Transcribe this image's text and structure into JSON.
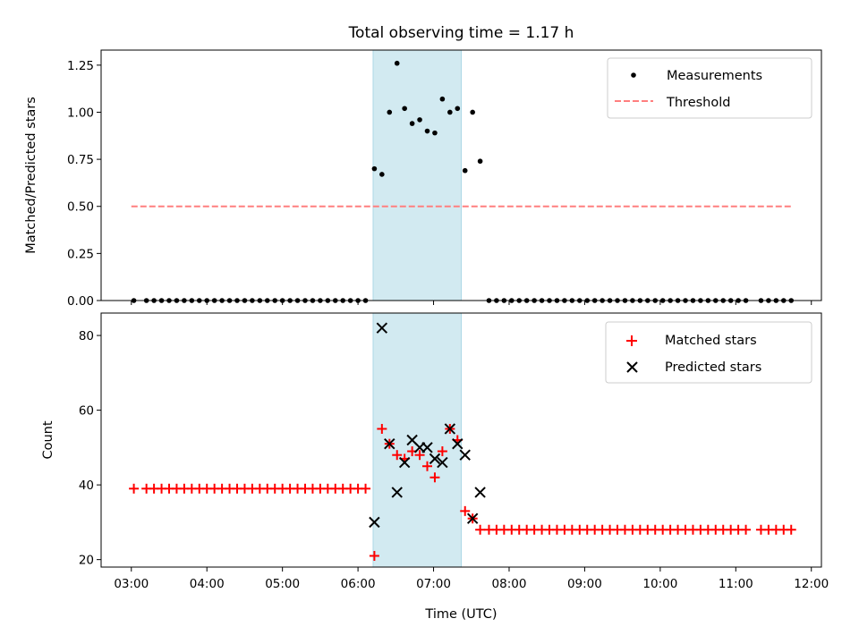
{
  "chart_data": [
    {
      "type": "scatter",
      "title": "Total observing time = 1.17 h",
      "xlabel": "",
      "ylabel": "Matched/Predicted stars",
      "xlim": [
        "02:36",
        "12:08"
      ],
      "ylim": [
        0,
        1.33
      ],
      "yticks": [
        "0.00",
        "0.25",
        "0.50",
        "0.75",
        "1.00",
        "1.25"
      ],
      "highlight_span": {
        "start": "06:12",
        "end": "07:22",
        "color": "#add8e6"
      },
      "legend": {
        "placement": "top-right",
        "entries": [
          "Measurements",
          "Threshold"
        ]
      },
      "colors": {
        "measurements": "#000000",
        "threshold": "#ff7f7f",
        "span": "#add8e6"
      },
      "series": [
        {
          "name": "Measurements",
          "style": "point",
          "points": [
            [
              "03:02",
              0
            ],
            [
              "03:12",
              0
            ],
            [
              "03:18",
              0
            ],
            [
              "03:24",
              0
            ],
            [
              "03:30",
              0
            ],
            [
              "03:36",
              0
            ],
            [
              "03:42",
              0
            ],
            [
              "03:48",
              0
            ],
            [
              "03:54",
              0
            ],
            [
              "04:00",
              0
            ],
            [
              "04:06",
              0
            ],
            [
              "04:12",
              0
            ],
            [
              "04:18",
              0
            ],
            [
              "04:24",
              0
            ],
            [
              "04:30",
              0
            ],
            [
              "04:36",
              0
            ],
            [
              "04:42",
              0
            ],
            [
              "04:48",
              0
            ],
            [
              "04:54",
              0
            ],
            [
              "05:00",
              0
            ],
            [
              "05:06",
              0
            ],
            [
              "05:12",
              0
            ],
            [
              "05:18",
              0
            ],
            [
              "05:24",
              0
            ],
            [
              "05:30",
              0
            ],
            [
              "05:36",
              0
            ],
            [
              "05:42",
              0
            ],
            [
              "05:48",
              0
            ],
            [
              "05:54",
              0
            ],
            [
              "06:00",
              0
            ],
            [
              "06:06",
              0
            ],
            [
              "06:13",
              0.7
            ],
            [
              "06:19",
              0.67
            ],
            [
              "06:25",
              1.0
            ],
            [
              "06:31",
              1.26
            ],
            [
              "06:37",
              1.02
            ],
            [
              "06:43",
              0.94
            ],
            [
              "06:49",
              0.96
            ],
            [
              "06:55",
              0.9
            ],
            [
              "07:01",
              0.89
            ],
            [
              "07:07",
              1.07
            ],
            [
              "07:13",
              1.0
            ],
            [
              "07:19",
              1.02
            ],
            [
              "07:25",
              0.69
            ],
            [
              "07:31",
              1.0
            ],
            [
              "07:37",
              0.74
            ],
            [
              "07:44",
              0
            ],
            [
              "07:50",
              0
            ],
            [
              "07:56",
              0
            ],
            [
              "08:02",
              0
            ],
            [
              "08:08",
              0
            ],
            [
              "08:14",
              0
            ],
            [
              "08:20",
              0
            ],
            [
              "08:26",
              0
            ],
            [
              "08:32",
              0
            ],
            [
              "08:38",
              0
            ],
            [
              "08:44",
              0
            ],
            [
              "08:50",
              0
            ],
            [
              "08:56",
              0
            ],
            [
              "09:02",
              0
            ],
            [
              "09:08",
              0
            ],
            [
              "09:14",
              0
            ],
            [
              "09:20",
              0
            ],
            [
              "09:26",
              0
            ],
            [
              "09:32",
              0
            ],
            [
              "09:38",
              0
            ],
            [
              "09:44",
              0
            ],
            [
              "09:50",
              0
            ],
            [
              "09:56",
              0
            ],
            [
              "10:02",
              0
            ],
            [
              "10:08",
              0
            ],
            [
              "10:14",
              0
            ],
            [
              "10:20",
              0
            ],
            [
              "10:26",
              0
            ],
            [
              "10:32",
              0
            ],
            [
              "10:38",
              0
            ],
            [
              "10:44",
              0
            ],
            [
              "10:50",
              0
            ],
            [
              "10:56",
              0
            ],
            [
              "11:02",
              0
            ],
            [
              "11:08",
              0
            ],
            [
              "11:20",
              0
            ],
            [
              "11:26",
              0
            ],
            [
              "11:32",
              0
            ],
            [
              "11:38",
              0
            ],
            [
              "11:44",
              0
            ]
          ]
        },
        {
          "name": "Threshold",
          "style": "dashed-line",
          "points": [
            [
              "03:00",
              0.5
            ],
            [
              "11:44",
              0.5
            ]
          ]
        }
      ]
    },
    {
      "type": "scatter",
      "title": "",
      "xlabel": "Time (UTC)",
      "ylabel": "Count",
      "xlim": [
        "02:36",
        "12:08"
      ],
      "ylim": [
        18,
        86
      ],
      "yticks": [
        "20",
        "40",
        "60",
        "80"
      ],
      "xticks": [
        "03:00",
        "04:00",
        "05:00",
        "06:00",
        "07:00",
        "08:00",
        "09:00",
        "10:00",
        "11:00",
        "12:00"
      ],
      "highlight_span": {
        "start": "06:12",
        "end": "07:22",
        "color": "#add8e6"
      },
      "legend": {
        "placement": "top-right",
        "entries": [
          "Matched stars",
          "Predicted stars"
        ]
      },
      "colors": {
        "matched": "#ff0000",
        "predicted": "#000000",
        "span": "#add8e6"
      },
      "series": [
        {
          "name": "Matched stars",
          "marker": "+",
          "points": [
            [
              "03:02",
              39
            ],
            [
              "03:12",
              39
            ],
            [
              "03:18",
              39
            ],
            [
              "03:24",
              39
            ],
            [
              "03:30",
              39
            ],
            [
              "03:36",
              39
            ],
            [
              "03:42",
              39
            ],
            [
              "03:48",
              39
            ],
            [
              "03:54",
              39
            ],
            [
              "04:00",
              39
            ],
            [
              "04:06",
              39
            ],
            [
              "04:12",
              39
            ],
            [
              "04:18",
              39
            ],
            [
              "04:24",
              39
            ],
            [
              "04:30",
              39
            ],
            [
              "04:36",
              39
            ],
            [
              "04:42",
              39
            ],
            [
              "04:48",
              39
            ],
            [
              "04:54",
              39
            ],
            [
              "05:00",
              39
            ],
            [
              "05:06",
              39
            ],
            [
              "05:12",
              39
            ],
            [
              "05:18",
              39
            ],
            [
              "05:24",
              39
            ],
            [
              "05:30",
              39
            ],
            [
              "05:36",
              39
            ],
            [
              "05:42",
              39
            ],
            [
              "05:48",
              39
            ],
            [
              "05:54",
              39
            ],
            [
              "06:00",
              39
            ],
            [
              "06:06",
              39
            ],
            [
              "06:13",
              21
            ],
            [
              "06:19",
              55
            ],
            [
              "06:25",
              51
            ],
            [
              "06:31",
              48
            ],
            [
              "06:37",
              47
            ],
            [
              "06:43",
              49
            ],
            [
              "06:49",
              48
            ],
            [
              "06:55",
              45
            ],
            [
              "07:01",
              42
            ],
            [
              "07:07",
              49
            ],
            [
              "07:13",
              55
            ],
            [
              "07:19",
              52
            ],
            [
              "07:25",
              33
            ],
            [
              "07:31",
              31
            ],
            [
              "07:37",
              28
            ],
            [
              "07:44",
              28
            ],
            [
              "07:50",
              28
            ],
            [
              "07:56",
              28
            ],
            [
              "08:02",
              28
            ],
            [
              "08:08",
              28
            ],
            [
              "08:14",
              28
            ],
            [
              "08:20",
              28
            ],
            [
              "08:26",
              28
            ],
            [
              "08:32",
              28
            ],
            [
              "08:38",
              28
            ],
            [
              "08:44",
              28
            ],
            [
              "08:50",
              28
            ],
            [
              "08:56",
              28
            ],
            [
              "09:02",
              28
            ],
            [
              "09:08",
              28
            ],
            [
              "09:14",
              28
            ],
            [
              "09:20",
              28
            ],
            [
              "09:26",
              28
            ],
            [
              "09:32",
              28
            ],
            [
              "09:38",
              28
            ],
            [
              "09:44",
              28
            ],
            [
              "09:50",
              28
            ],
            [
              "09:56",
              28
            ],
            [
              "10:02",
              28
            ],
            [
              "10:08",
              28
            ],
            [
              "10:14",
              28
            ],
            [
              "10:20",
              28
            ],
            [
              "10:26",
              28
            ],
            [
              "10:32",
              28
            ],
            [
              "10:38",
              28
            ],
            [
              "10:44",
              28
            ],
            [
              "10:50",
              28
            ],
            [
              "10:56",
              28
            ],
            [
              "11:02",
              28
            ],
            [
              "11:08",
              28
            ],
            [
              "11:20",
              28
            ],
            [
              "11:26",
              28
            ],
            [
              "11:32",
              28
            ],
            [
              "11:38",
              28
            ],
            [
              "11:44",
              28
            ]
          ]
        },
        {
          "name": "Predicted stars",
          "marker": "x",
          "points": [
            [
              "06:13",
              30
            ],
            [
              "06:19",
              82
            ],
            [
              "06:25",
              51
            ],
            [
              "06:31",
              38
            ],
            [
              "06:37",
              46
            ],
            [
              "06:43",
              52
            ],
            [
              "06:49",
              50
            ],
            [
              "06:55",
              50
            ],
            [
              "07:01",
              47
            ],
            [
              "07:07",
              46
            ],
            [
              "07:13",
              55
            ],
            [
              "07:19",
              51
            ],
            [
              "07:25",
              48
            ],
            [
              "07:31",
              31
            ],
            [
              "07:37",
              38
            ]
          ]
        }
      ]
    }
  ]
}
